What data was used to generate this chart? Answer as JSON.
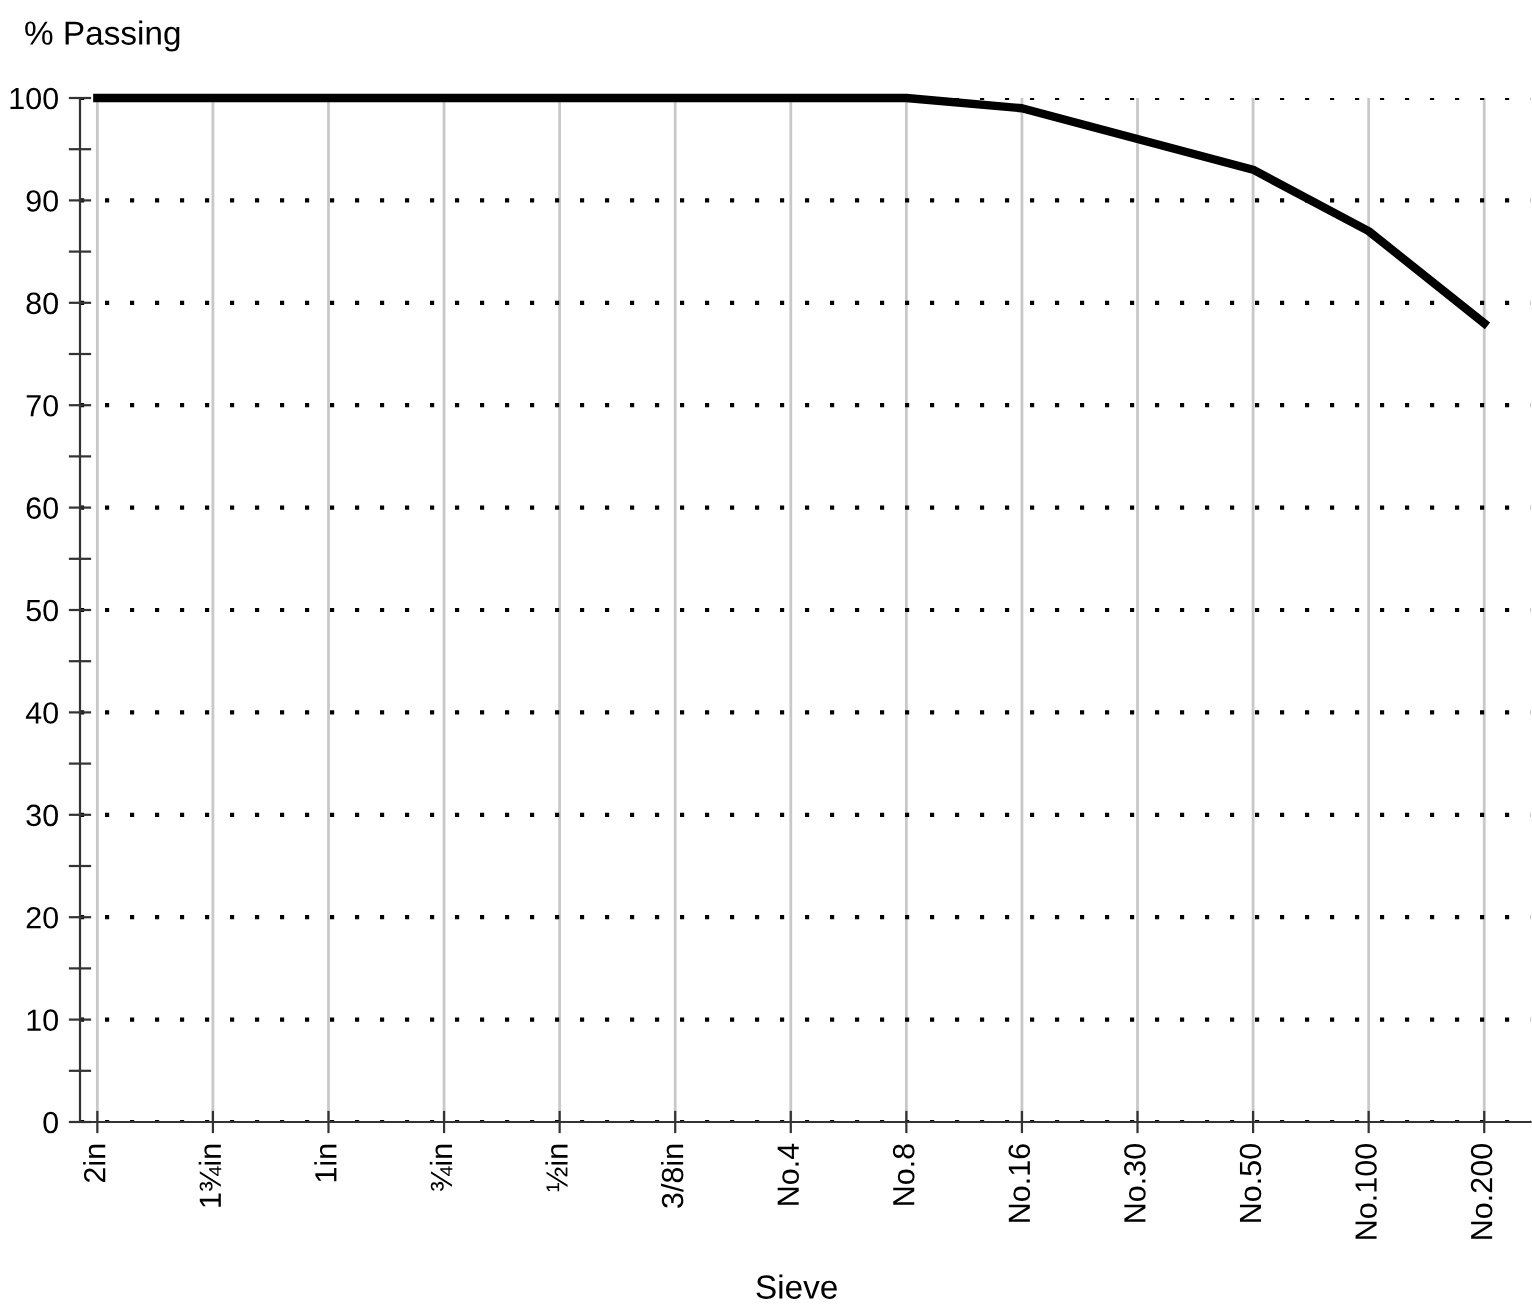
{
  "chart_data": {
    "type": "line",
    "xlabel": "Sieve",
    "ylabel": "% Passing",
    "categories": [
      "2in",
      "1¾in",
      "1in",
      "¾in",
      "½in",
      "3/8in",
      "No.4",
      "No.8",
      "No.16",
      "No.30",
      "No.50",
      "No.100",
      "No.200"
    ],
    "series": [
      {
        "color": "#000000",
        "values": [
          100,
          100,
          100,
          100,
          100,
          100,
          100,
          100,
          99,
          96,
          93,
          87,
          78
        ]
      }
    ],
    "ylim": [
      0,
      100
    ],
    "yticks": [
      0,
      {
        "value": 5,
        "label": null
      },
      10,
      {
        "value": 15,
        "label": null
      },
      20,
      {
        "value": 25,
        "label": null
      },
      30,
      {
        "value": 35,
        "label": null
      },
      40,
      {
        "value": 45,
        "label": null
      },
      50,
      {
        "value": 55,
        "label": null
      },
      60,
      {
        "value": 65,
        "label": null
      },
      70,
      {
        "value": 75,
        "label": null
      },
      80,
      {
        "value": 85,
        "label": null
      },
      90,
      {
        "value": 95,
        "label": null
      },
      100
    ],
    "grid": true,
    "marker": "none",
    "line_style": "solid"
  }
}
